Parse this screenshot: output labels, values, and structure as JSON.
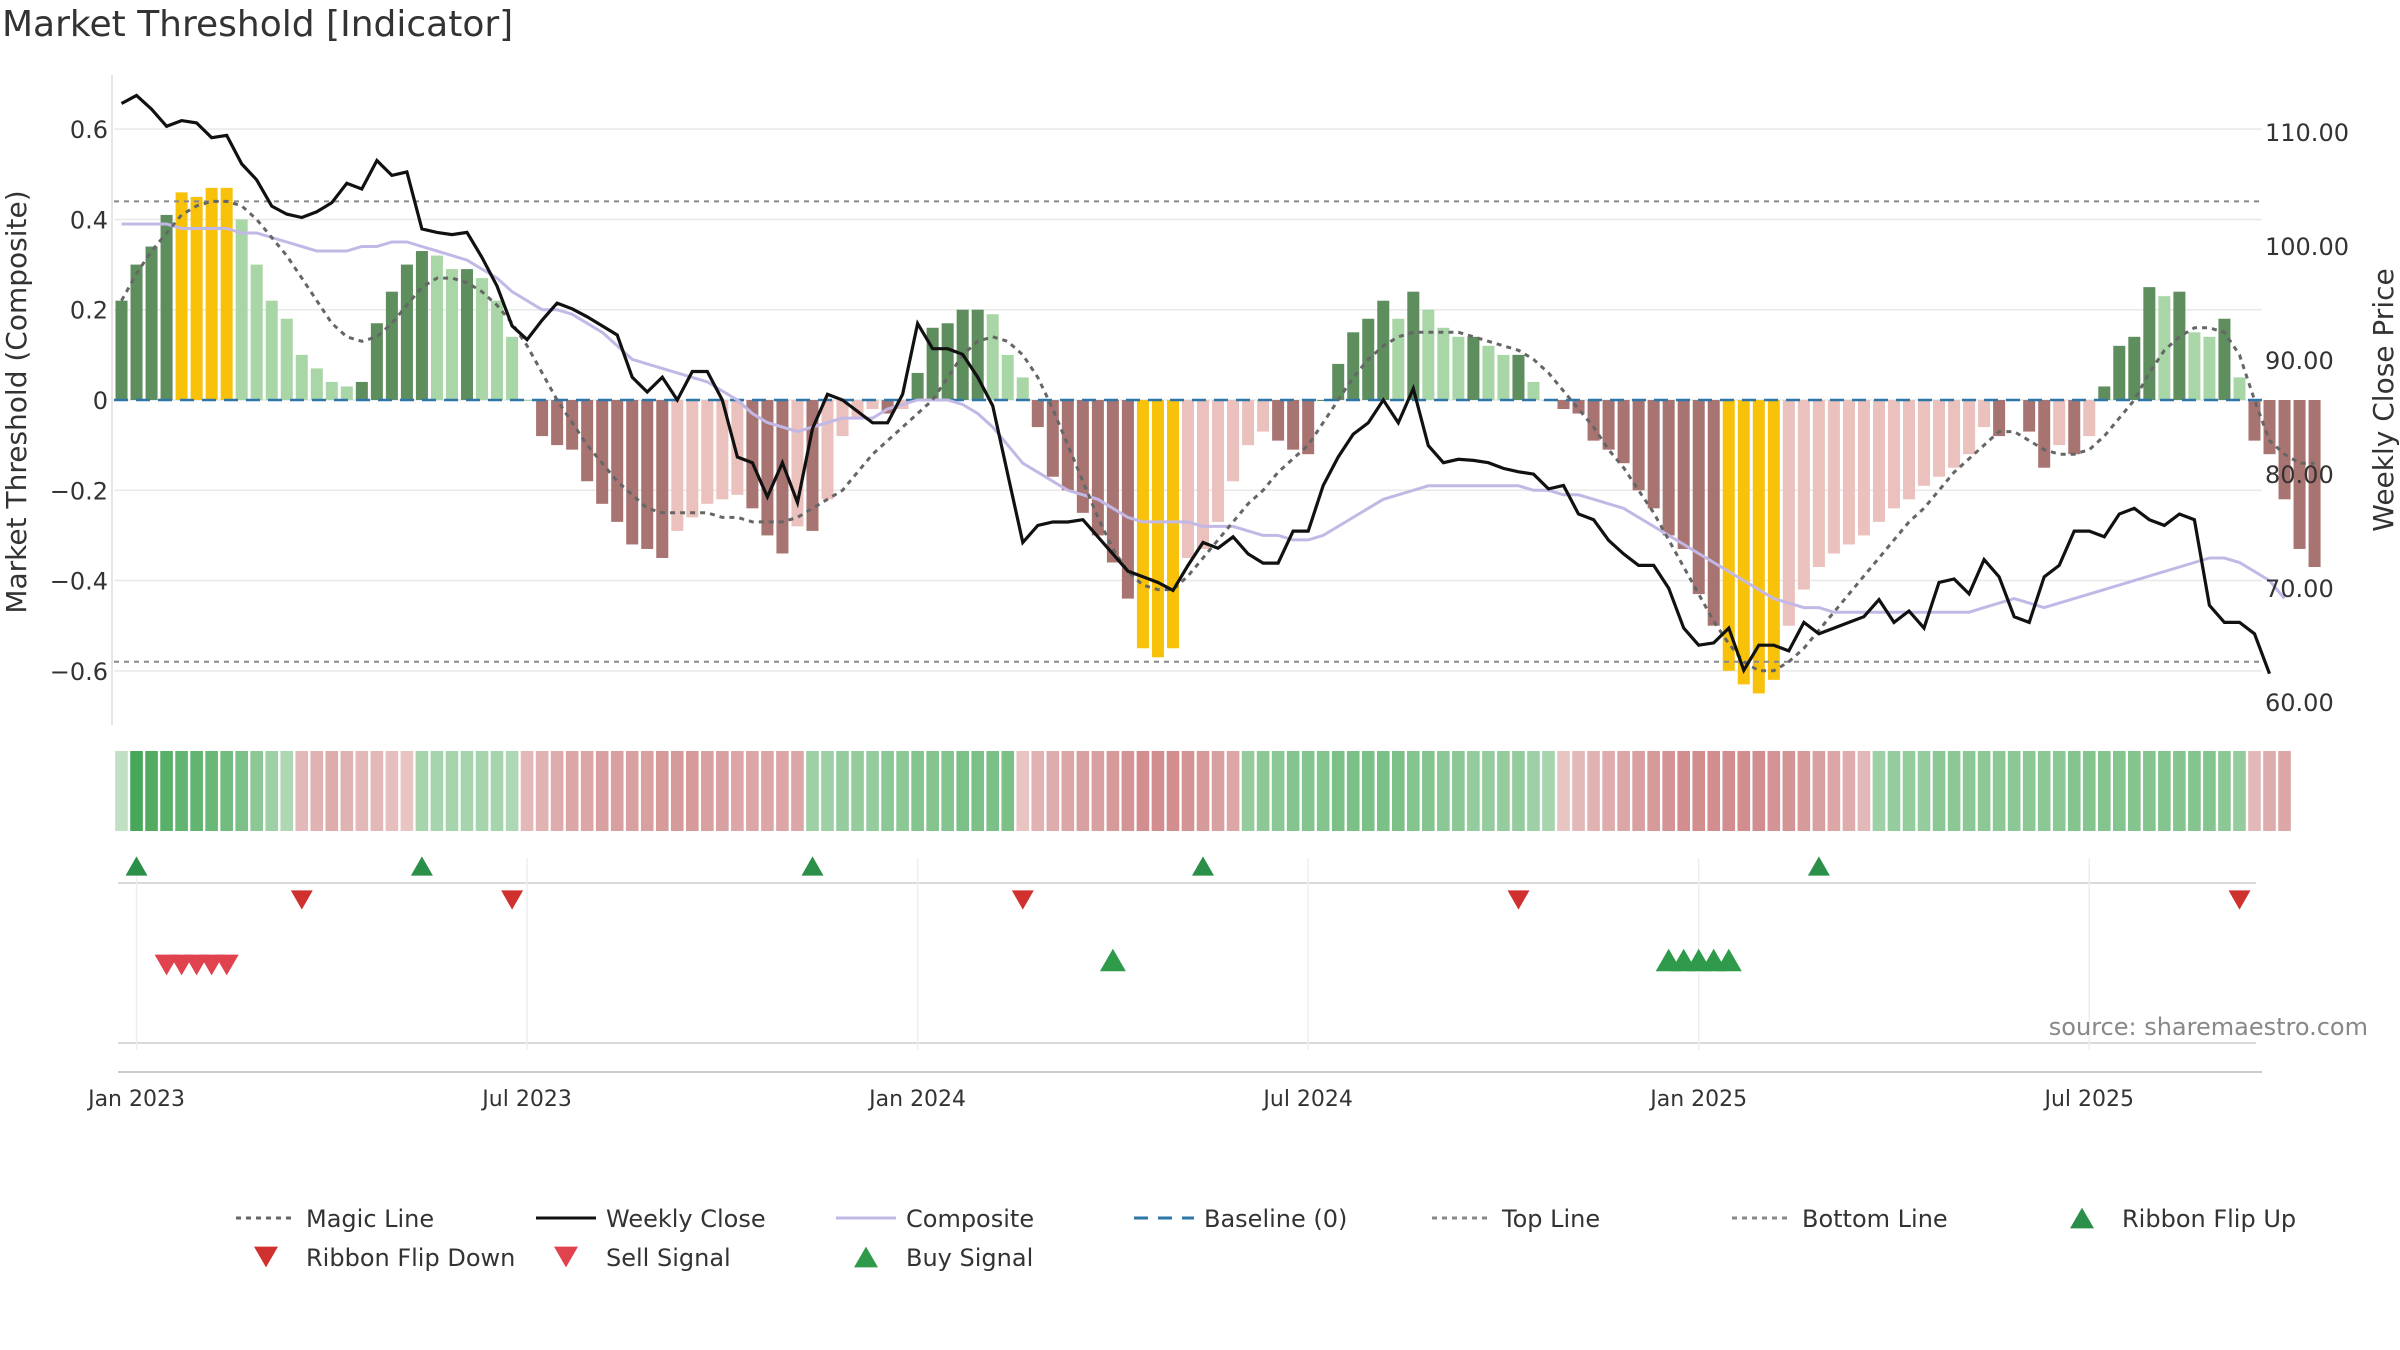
{
  "chart_data": {
    "type": "bar+line",
    "title": "Market Threshold [Indicator]",
    "ylabel_left": "Market Threshold (Composite)",
    "ylabel_right": "Weekly Close Price",
    "ylim_left": [
      -0.72,
      0.72
    ],
    "ylim_right": [
      58,
      115
    ],
    "left_ticks": [
      {
        "v": 0.6,
        "label": "0.6"
      },
      {
        "v": 0.4,
        "label": "0.4"
      },
      {
        "v": 0.2,
        "label": "0.2"
      },
      {
        "v": 0,
        "label": "0"
      },
      {
        "v": -0.2,
        "label": "−0.2"
      },
      {
        "v": -0.4,
        "label": "−0.4"
      },
      {
        "v": -0.6,
        "label": "−0.6"
      }
    ],
    "right_ticks": [
      {
        "v": 110,
        "label": "110.00"
      },
      {
        "v": 100,
        "label": "100.00"
      },
      {
        "v": 90,
        "label": "90.00"
      },
      {
        "v": 80,
        "label": "80.00"
      },
      {
        "v": 70,
        "label": "70.00"
      },
      {
        "v": 60,
        "label": "60.00"
      }
    ],
    "x_ticks": [
      {
        "week": 1,
        "label": "Jan 2023"
      },
      {
        "week": 27,
        "label": "Jul 2023"
      },
      {
        "week": 53,
        "label": "Jan 2024"
      },
      {
        "week": 79,
        "label": "Jul 2024"
      },
      {
        "week": 105,
        "label": "Jan 2025"
      },
      {
        "week": 131,
        "label": "Jul 2025"
      }
    ],
    "top_line": 0.44,
    "bottom_line": -0.58,
    "weeks": 143,
    "composite_bars": [
      0.22,
      0.3,
      0.34,
      0.41,
      0.46,
      0.45,
      0.47,
      0.47,
      0.4,
      0.3,
      0.22,
      0.18,
      0.1,
      0.07,
      0.04,
      0.03,
      0.04,
      0.17,
      0.24,
      0.3,
      0.33,
      0.32,
      0.29,
      0.29,
      0.27,
      0.22,
      0.14,
      0.0,
      -0.08,
      -0.1,
      -0.11,
      -0.18,
      -0.23,
      -0.27,
      -0.32,
      -0.33,
      -0.35,
      -0.29,
      -0.26,
      -0.23,
      -0.22,
      -0.21,
      -0.24,
      -0.3,
      -0.34,
      -0.28,
      -0.29,
      -0.22,
      -0.08,
      -0.04,
      -0.02,
      -0.03,
      -0.02,
      0.06,
      0.16,
      0.17,
      0.2,
      0.2,
      0.19,
      0.1,
      0.05,
      -0.06,
      -0.17,
      -0.2,
      -0.25,
      -0.3,
      -0.36,
      -0.44,
      -0.55,
      -0.57,
      -0.55,
      -0.35,
      -0.33,
      -0.27,
      -0.18,
      -0.1,
      -0.07,
      -0.09,
      -0.11,
      -0.12,
      0.0,
      0.08,
      0.15,
      0.18,
      0.22,
      0.18,
      0.24,
      0.2,
      0.16,
      0.14,
      0.14,
      0.12,
      0.1,
      0.1,
      0.04,
      0.0,
      -0.02,
      -0.03,
      -0.09,
      -0.11,
      -0.14,
      -0.2,
      -0.24,
      -0.3,
      -0.33,
      -0.43,
      -0.5,
      -0.6,
      -0.63,
      -0.65,
      -0.62,
      -0.5,
      -0.42,
      -0.37,
      -0.34,
      -0.32,
      -0.3,
      -0.27,
      -0.24,
      -0.22,
      -0.19,
      -0.17,
      -0.15,
      -0.12,
      -0.06,
      -0.08,
      0.0,
      -0.07,
      -0.15,
      -0.1,
      -0.12,
      -0.08,
      0.03,
      0.12,
      0.14,
      0.25,
      0.23,
      0.24,
      0.15,
      0.14,
      0.18,
      0.05,
      -0.09,
      -0.12,
      -0.22,
      -0.33,
      -0.37
    ],
    "weekly_close": [
      112.5,
      113.2,
      112.0,
      110.5,
      111.0,
      110.8,
      109.5,
      109.7,
      107.2,
      105.8,
      103.5,
      102.8,
      102.5,
      103.0,
      103.8,
      105.5,
      105.0,
      107.5,
      106.2,
      106.5,
      101.5,
      101.2,
      101.0,
      101.2,
      99.0,
      96.5,
      93.0,
      91.8,
      93.5,
      95.0,
      94.5,
      93.8,
      93.0,
      92.2,
      88.5,
      87.2,
      88.5,
      86.5,
      89.0,
      89.0,
      86.5,
      81.5,
      81.0,
      78.0,
      81.0,
      77.5,
      84.0,
      87.0,
      86.5,
      85.5,
      84.5,
      84.5,
      87.0,
      93.2,
      91.0,
      91.0,
      90.5,
      88.5,
      86.0,
      80.0,
      74.0,
      75.5,
      75.8,
      75.8,
      76.0,
      74.5,
      73.0,
      71.5,
      71.0,
      70.5,
      69.8,
      72.0,
      74.0,
      73.5,
      74.5,
      73.0,
      72.2,
      72.2,
      75.0,
      75.0,
      79.0,
      81.5,
      83.5,
      84.5,
      86.5,
      84.5,
      87.5,
      82.5,
      81.0,
      81.3,
      81.2,
      81.0,
      80.5,
      80.2,
      80.0,
      78.7,
      79.0,
      76.5,
      76.0,
      74.2,
      73.0,
      72.0,
      72.0,
      70.0,
      66.5,
      65.0,
      65.2,
      66.5,
      62.8,
      65.0,
      65.0,
      64.5,
      67.0,
      66.0,
      66.5,
      67.0,
      67.5,
      69.0,
      67.0,
      68.0,
      66.5,
      70.5,
      70.8,
      69.5,
      72.5,
      71.0,
      67.5,
      67.0,
      71.0,
      72.0,
      75.0,
      75.0,
      74.5,
      76.5,
      77.0,
      76.0,
      75.5,
      76.5,
      76.0,
      68.5,
      67.0,
      67.0,
      66.0,
      62.5
    ],
    "composite_line": [
      0.39,
      0.39,
      0.39,
      0.39,
      0.38,
      0.38,
      0.38,
      0.38,
      0.37,
      0.37,
      0.36,
      0.35,
      0.34,
      0.33,
      0.33,
      0.33,
      0.34,
      0.34,
      0.35,
      0.35,
      0.34,
      0.33,
      0.32,
      0.31,
      0.29,
      0.27,
      0.24,
      0.22,
      0.2,
      0.2,
      0.19,
      0.17,
      0.15,
      0.12,
      0.09,
      0.08,
      0.07,
      0.06,
      0.05,
      0.04,
      0.02,
      0.0,
      -0.03,
      -0.05,
      -0.06,
      -0.07,
      -0.06,
      -0.05,
      -0.04,
      -0.04,
      -0.04,
      -0.02,
      -0.01,
      0.0,
      0.0,
      0.0,
      -0.01,
      -0.03,
      -0.06,
      -0.1,
      -0.14,
      -0.16,
      -0.18,
      -0.2,
      -0.21,
      -0.22,
      -0.24,
      -0.26,
      -0.27,
      -0.27,
      -0.27,
      -0.27,
      -0.28,
      -0.28,
      -0.28,
      -0.29,
      -0.3,
      -0.3,
      -0.31,
      -0.31,
      -0.3,
      -0.28,
      -0.26,
      -0.24,
      -0.22,
      -0.21,
      -0.2,
      -0.19,
      -0.19,
      -0.19,
      -0.19,
      -0.19,
      -0.19,
      -0.19,
      -0.2,
      -0.2,
      -0.21,
      -0.21,
      -0.22,
      -0.23,
      -0.24,
      -0.26,
      -0.28,
      -0.3,
      -0.32,
      -0.34,
      -0.36,
      -0.38,
      -0.4,
      -0.42,
      -0.44,
      -0.45,
      -0.46,
      -0.46,
      -0.47,
      -0.47,
      -0.47,
      -0.47,
      -0.47,
      -0.47,
      -0.47,
      -0.47,
      -0.47,
      -0.47,
      -0.46,
      -0.45,
      -0.44,
      -0.45,
      -0.46,
      -0.45,
      -0.44,
      -0.43,
      -0.42,
      -0.41,
      -0.4,
      -0.39,
      -0.38,
      -0.37,
      -0.36,
      -0.35,
      -0.35,
      -0.36,
      -0.38,
      -0.4,
      -0.44
    ],
    "magic_line": [
      0.22,
      0.28,
      0.33,
      0.37,
      0.41,
      0.43,
      0.44,
      0.44,
      0.43,
      0.4,
      0.36,
      0.32,
      0.27,
      0.22,
      0.17,
      0.14,
      0.13,
      0.14,
      0.17,
      0.21,
      0.25,
      0.27,
      0.27,
      0.26,
      0.24,
      0.21,
      0.17,
      0.12,
      0.06,
      0.0,
      -0.05,
      -0.1,
      -0.14,
      -0.18,
      -0.21,
      -0.24,
      -0.25,
      -0.25,
      -0.25,
      -0.25,
      -0.26,
      -0.26,
      -0.27,
      -0.27,
      -0.27,
      -0.26,
      -0.24,
      -0.22,
      -0.2,
      -0.16,
      -0.12,
      -0.09,
      -0.06,
      -0.03,
      0.0,
      0.05,
      0.1,
      0.13,
      0.14,
      0.13,
      0.1,
      0.05,
      -0.02,
      -0.1,
      -0.18,
      -0.26,
      -0.33,
      -0.38,
      -0.41,
      -0.42,
      -0.42,
      -0.39,
      -0.35,
      -0.31,
      -0.27,
      -0.23,
      -0.2,
      -0.16,
      -0.13,
      -0.1,
      -0.05,
      0.0,
      0.05,
      0.09,
      0.12,
      0.14,
      0.15,
      0.15,
      0.15,
      0.15,
      0.14,
      0.13,
      0.12,
      0.11,
      0.09,
      0.06,
      0.02,
      -0.02,
      -0.06,
      -0.11,
      -0.15,
      -0.2,
      -0.25,
      -0.31,
      -0.37,
      -0.43,
      -0.49,
      -0.54,
      -0.58,
      -0.6,
      -0.6,
      -0.58,
      -0.55,
      -0.51,
      -0.47,
      -0.43,
      -0.39,
      -0.35,
      -0.31,
      -0.27,
      -0.24,
      -0.2,
      -0.16,
      -0.13,
      -0.1,
      -0.07,
      -0.07,
      -0.09,
      -0.11,
      -0.12,
      -0.12,
      -0.11,
      -0.08,
      -0.04,
      0.0,
      0.06,
      0.11,
      0.14,
      0.16,
      0.16,
      0.15,
      0.1,
      0.0,
      -0.09,
      -0.12,
      -0.14,
      -0.14
    ],
    "ribbon": [
      0.2,
      0.9,
      0.85,
      0.8,
      0.75,
      0.75,
      0.7,
      0.65,
      0.6,
      0.5,
      0.4,
      0.3,
      -0.3,
      -0.35,
      -0.4,
      -0.35,
      -0.3,
      -0.3,
      -0.25,
      -0.2,
      0.35,
      0.35,
      0.35,
      0.35,
      0.35,
      0.35,
      0.3,
      -0.3,
      -0.35,
      -0.4,
      -0.45,
      -0.45,
      -0.5,
      -0.5,
      -0.5,
      -0.5,
      -0.55,
      -0.55,
      -0.55,
      -0.5,
      -0.5,
      -0.45,
      -0.45,
      -0.45,
      -0.45,
      -0.45,
      0.4,
      0.4,
      0.45,
      0.45,
      0.45,
      0.5,
      0.5,
      0.55,
      0.55,
      0.55,
      0.6,
      0.6,
      0.6,
      0.6,
      -0.2,
      -0.35,
      -0.4,
      -0.45,
      -0.5,
      -0.5,
      -0.55,
      -0.6,
      -0.65,
      -0.65,
      -0.65,
      -0.6,
      -0.55,
      -0.5,
      -0.45,
      0.45,
      0.5,
      0.5,
      0.55,
      0.55,
      0.55,
      0.6,
      0.6,
      0.6,
      0.6,
      0.6,
      0.55,
      0.55,
      0.5,
      0.5,
      0.45,
      0.45,
      0.45,
      0.45,
      0.4,
      0.35,
      -0.2,
      -0.3,
      -0.35,
      -0.4,
      -0.45,
      -0.5,
      -0.55,
      -0.6,
      -0.65,
      -0.65,
      -0.65,
      -0.65,
      -0.65,
      -0.65,
      -0.6,
      -0.6,
      -0.55,
      -0.5,
      -0.45,
      -0.4,
      -0.3,
      0.4,
      0.45,
      0.45,
      0.45,
      0.5,
      0.5,
      0.5,
      0.5,
      0.5,
      0.5,
      0.5,
      0.5,
      0.5,
      0.55,
      0.55,
      0.55,
      0.55,
      0.55,
      0.55,
      0.55,
      0.55,
      0.55,
      0.55,
      0.5,
      0.45,
      -0.3,
      -0.4,
      -0.45
    ],
    "ribbon_flip_up": [
      1,
      20,
      46,
      72,
      113
    ],
    "ribbon_flip_down": [
      12,
      26,
      60,
      93,
      141
    ],
    "sell_signals": [
      3,
      4,
      5,
      6,
      7
    ],
    "buy_signals": [
      66,
      103,
      104,
      105,
      106,
      107
    ],
    "colors": {
      "bar_pos_strong": "#5e8d5e",
      "bar_pos_weak": "#a9d6a6",
      "bar_neg_strong": "#a87472",
      "bar_neg_weak": "#eac1bc",
      "bar_extreme": "#f9c20a",
      "weekly_close": "#111111",
      "composite": "#c2b8e6",
      "magic": "#666666",
      "baseline": "#2e76a8",
      "threshold": "#888888",
      "flip_up": "#2a8f48",
      "flip_down": "#d1312e",
      "sell": "#e0424e",
      "buy": "#2f9a4a"
    },
    "legend": [
      {
        "label": "Magic Line",
        "type": "dotted",
        "color": "#666666"
      },
      {
        "label": "Weekly Close",
        "type": "solid",
        "color": "#111111"
      },
      {
        "label": "Composite",
        "type": "solid",
        "color": "#c2b8e6"
      },
      {
        "label": "Baseline (0)",
        "type": "dashed",
        "color": "#2e76a8"
      },
      {
        "label": "Top Line",
        "type": "dotted",
        "color": "#888888"
      },
      {
        "label": "Bottom Line",
        "type": "dotted",
        "color": "#888888"
      },
      {
        "label": "Ribbon Flip Up",
        "type": "tri-up",
        "color": "#2a8f48"
      },
      {
        "label": "Ribbon Flip Down",
        "type": "tri-down",
        "color": "#d1312e"
      },
      {
        "label": "Sell Signal",
        "type": "tri-down",
        "color": "#e0424e"
      },
      {
        "label": "Buy Signal",
        "type": "tri-up",
        "color": "#2f9a4a"
      }
    ],
    "watermark": "source: sharemaestro.com"
  }
}
